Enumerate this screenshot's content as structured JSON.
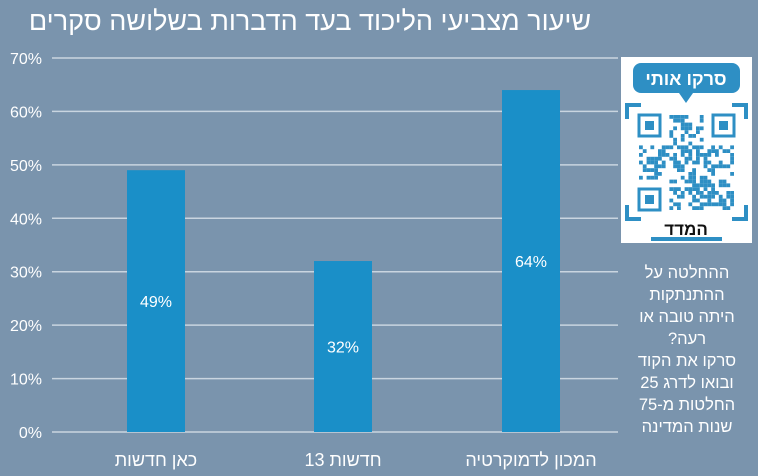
{
  "chart_data": {
    "type": "bar",
    "title": "שיעור מצביעי הליכוד בעד הדברות בשלושה סקרים",
    "categories": [
      "כאן חדשות",
      "חדשות 13",
      "המכון לדמוקרטיה"
    ],
    "values": [
      49,
      32,
      64
    ],
    "data_labels": [
      "49%",
      "32%",
      "64%"
    ],
    "ylim": [
      0,
      70
    ],
    "yticks": [
      "0%",
      "10%",
      "20%",
      "30%",
      "40%",
      "50%",
      "60%",
      "70%"
    ],
    "grid": true,
    "bar_color": "#1a8fc8",
    "background": "#7a94ad"
  },
  "qr_panel": {
    "badge": "סרקו אותי",
    "logo": "המדד",
    "accent": "#2e8fc4"
  },
  "side_text": [
    "ההחלטה על",
    "ההתנתקות",
    "היתה טובה או",
    "רעה?",
    "סרקו את הקוד",
    "ובואו לדרג 25",
    "החלטות מ-75",
    "שנות המדינה"
  ]
}
